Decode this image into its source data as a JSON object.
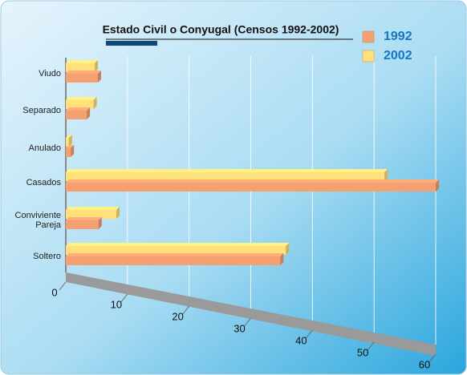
{
  "chart_data": {
    "type": "bar",
    "orientation": "horizontal",
    "title": "Estado Civil o Conyugal (Censos 1992-2002)",
    "categories": [
      "Viudo",
      "Separado",
      "Anulado",
      "Casados",
      "Conviviente Pareja",
      "Soltero"
    ],
    "series": [
      {
        "name": "1992",
        "color": "#f4a070",
        "values": [
          5.2,
          3.4,
          0.8,
          60,
          5.3,
          34.8
        ]
      },
      {
        "name": "2002",
        "color": "#ffe07a",
        "values": [
          4.7,
          4.5,
          0.5,
          51.7,
          8.2,
          35.7
        ]
      }
    ],
    "xlim": [
      0,
      60
    ],
    "xticks": [
      0,
      10,
      20,
      30,
      40,
      50,
      60
    ],
    "grid": true,
    "legend": "top-right"
  }
}
